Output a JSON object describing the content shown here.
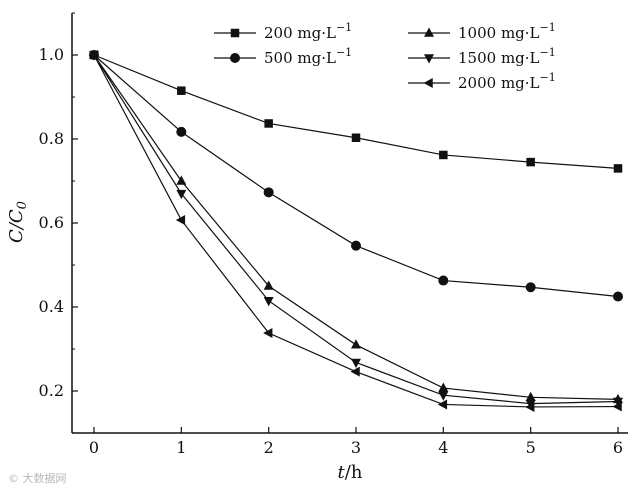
{
  "chart_data": {
    "type": "line",
    "xlabel_var": "t",
    "xlabel_unit": "/h",
    "ylabel_main": "C/C",
    "ylabel_sub": "0",
    "xlim": [
      0,
      6
    ],
    "ylim": [
      0.1,
      1.1
    ],
    "x": [
      0,
      1,
      2,
      3,
      4,
      5,
      6
    ],
    "x_tick_labels": [
      "0",
      "1",
      "2",
      "3",
      "4",
      "5",
      "6"
    ],
    "y_ticks": [
      0.2,
      0.4,
      0.6,
      0.8,
      1.0
    ],
    "y_tick_labels": [
      "0.2",
      "0.4",
      "0.6",
      "0.8",
      "1.0"
    ],
    "legend_position": "top-right, two columns",
    "series": [
      {
        "name": "200 mg·L",
        "sup": "−1",
        "marker": "square",
        "values": [
          1.0,
          0.915,
          0.837,
          0.803,
          0.762,
          0.745,
          0.73
        ]
      },
      {
        "name": "500 mg·L",
        "sup": "−1",
        "marker": "circle",
        "values": [
          1.0,
          0.817,
          0.673,
          0.546,
          0.463,
          0.447,
          0.425
        ]
      },
      {
        "name": "1000 mg·L",
        "sup": "−1",
        "marker": "triangle-up",
        "values": [
          1.0,
          0.7,
          0.45,
          0.31,
          0.207,
          0.185,
          0.18
        ]
      },
      {
        "name": "1500 mg·L",
        "sup": "−1",
        "marker": "triangle-down",
        "values": [
          1.0,
          0.67,
          0.415,
          0.268,
          0.19,
          0.17,
          0.175
        ]
      },
      {
        "name": "2000 mg·L",
        "sup": "−1",
        "marker": "triangle-left",
        "values": [
          1.0,
          0.607,
          0.338,
          0.246,
          0.168,
          0.162,
          0.163
        ]
      }
    ]
  },
  "watermark": "© 大数据网"
}
